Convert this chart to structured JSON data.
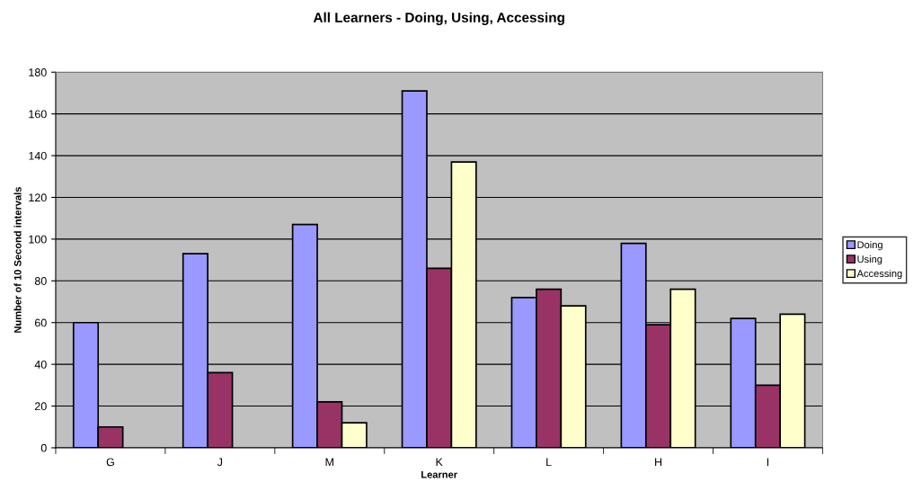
{
  "chart_data": {
    "type": "bar",
    "title": "All Learners - Doing, Using, Accessing",
    "xlabel": "Learner",
    "ylabel": "Number of 10 Second intervals",
    "categories": [
      "G",
      "J",
      "M",
      "K",
      "L",
      "H",
      "I"
    ],
    "series": [
      {
        "name": "Doing",
        "color": "#9999ff",
        "values": [
          60,
          93,
          107,
          171,
          72,
          98,
          62
        ]
      },
      {
        "name": "Using",
        "color": "#993366",
        "values": [
          10,
          36,
          22,
          86,
          76,
          59,
          30
        ]
      },
      {
        "name": "Accessing",
        "color": "#ffffcc",
        "values": [
          null,
          null,
          12,
          137,
          68,
          76,
          64
        ]
      }
    ],
    "ylim": [
      0,
      180
    ],
    "yticks": [
      0,
      20,
      40,
      60,
      80,
      100,
      120,
      140,
      160,
      180
    ],
    "grid": "y",
    "legend": "right"
  }
}
